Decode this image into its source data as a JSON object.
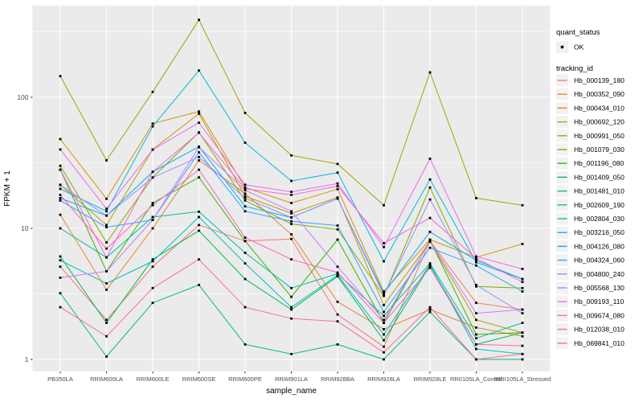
{
  "chart_data": {
    "type": "line",
    "title": "",
    "xlabel": "sample_name",
    "ylabel": "FPKM + 1",
    "y_scale": "log10",
    "y_tick_labels": [
      "1",
      "10",
      "100"
    ],
    "y_tick_values": [
      1,
      10,
      100
    ],
    "y_minor_values": [
      3.162,
      31.62,
      316.2
    ],
    "ylim": [
      0.88,
      520
    ],
    "grid": true,
    "legend_position": "right",
    "panel_bg": "#EBEBEB",
    "grid_color": "#FFFFFF",
    "key_bg": "#F2F2F2",
    "tick_text_color": "#4D4D4D",
    "point_color": "#000000",
    "categories": [
      "PB350LA",
      "RRIM600LA",
      "RRIM600LE",
      "RRIM600SE",
      "RRIM600PE",
      "RRIM901LA",
      "RRIM928BA",
      "RRIM928LA",
      "RRIM928LE",
      "RRII105LA_Control",
      "RRII105LA_Stressed"
    ],
    "series": [
      {
        "name": "Hb_000139_180",
        "color": "#F8766D",
        "values": [
          5.1,
          2.0,
          5.1,
          10.6,
          8.0,
          8.3,
          2.2,
          1.25,
          8.0,
          2.7,
          2.4
        ]
      },
      {
        "name": "Hb_000352_090",
        "color": "#EA8331",
        "values": [
          12.7,
          3.4,
          10.0,
          33.0,
          18.4,
          9.0,
          2.75,
          1.7,
          2.4,
          1.75,
          1.5
        ]
      },
      {
        "name": "Hb_000434_010",
        "color": "#D89000",
        "values": [
          48.0,
          16.8,
          63.0,
          78.0,
          20.5,
          15.6,
          19.9,
          3.3,
          8.2,
          6.0,
          7.6
        ]
      },
      {
        "name": "Hb_000692_120",
        "color": "#C09B00",
        "values": [
          21.5,
          10.6,
          40.0,
          75.0,
          17.6,
          13.0,
          17.2,
          2.6,
          7.9,
          2.0,
          1.6
        ]
      },
      {
        "name": "Hb_000991_050",
        "color": "#A3A500",
        "values": [
          145.0,
          33.0,
          110.0,
          390.0,
          76.0,
          36.0,
          31.0,
          15.0,
          155.0,
          17.0,
          15.0
        ]
      },
      {
        "name": "Hb_001079_030",
        "color": "#7CAE00",
        "values": [
          30.0,
          7.8,
          24.5,
          54.0,
          16.3,
          10.8,
          9.8,
          3.05,
          20.5,
          3.6,
          3.5
        ]
      },
      {
        "name": "Hb_001196_080",
        "color": "#39B600",
        "values": [
          28.0,
          4.7,
          15.6,
          24.5,
          8.0,
          3.0,
          8.2,
          1.9,
          8.1,
          1.55,
          1.6
        ]
      },
      {
        "name": "Hb_001409_050",
        "color": "#00BB4E",
        "values": [
          6.1,
          1.9,
          5.8,
          9.6,
          4.1,
          2.4,
          4.3,
          1.4,
          5.2,
          1.3,
          1.6
        ]
      },
      {
        "name": "Hb_001481_010",
        "color": "#00BF7D",
        "values": [
          3.2,
          1.05,
          2.7,
          3.7,
          1.3,
          1.1,
          1.3,
          1.0,
          2.3,
          1.0,
          1.0
        ]
      },
      {
        "name": "Hb_002609_190",
        "color": "#00C1A3",
        "values": [
          10.0,
          6.0,
          12.2,
          13.4,
          6.5,
          3.5,
          4.5,
          2.15,
          5.4,
          1.45,
          1.9
        ]
      },
      {
        "name": "Hb_002804_030",
        "color": "#00BFC4",
        "values": [
          5.7,
          3.8,
          5.6,
          12.2,
          5.4,
          2.5,
          4.4,
          1.55,
          5.3,
          1.2,
          1.1
        ]
      },
      {
        "name": "Hb_003216_050",
        "color": "#00BAE0",
        "values": [
          20.0,
          13.5,
          60.0,
          160.0,
          45.0,
          23.0,
          26.6,
          5.6,
          23.6,
          5.5,
          4.1
        ]
      },
      {
        "name": "Hb_004126_080",
        "color": "#00B0F6",
        "values": [
          17.0,
          12.5,
          27.0,
          42.0,
          14.7,
          12.1,
          16.9,
          3.2,
          9.4,
          5.7,
          4.1
        ]
      },
      {
        "name": "Hb_004324_060",
        "color": "#35A2FF",
        "values": [
          16.3,
          10.2,
          11.6,
          38.0,
          13.5,
          11.3,
          10.5,
          2.3,
          7.1,
          5.2,
          3.3
        ]
      },
      {
        "name": "Hb_004800_240",
        "color": "#9590FF",
        "values": [
          21.4,
          12.5,
          24.4,
          35.0,
          17.0,
          12.1,
          16.9,
          3.1,
          16.6,
          3.7,
          2.25
        ]
      },
      {
        "name": "Hb_005568_130",
        "color": "#C77CFF",
        "values": [
          4.2,
          4.7,
          11.6,
          41.6,
          19.5,
          13.5,
          5.1,
          2.0,
          8.0,
          2.25,
          2.4
        ]
      },
      {
        "name": "Hb_009193_110",
        "color": "#E76BF3",
        "values": [
          40.0,
          14.1,
          39.8,
          64.0,
          21.5,
          19.0,
          22.0,
          7.2,
          34.0,
          6.1,
          4.9
        ]
      },
      {
        "name": "Hb_009674_080",
        "color": "#FA62DB",
        "values": [
          28.0,
          6.0,
          27.0,
          53.6,
          20.0,
          18.0,
          21.0,
          7.7,
          12.0,
          5.9,
          3.9
        ]
      },
      {
        "name": "Hb_012038_010",
        "color": "#FF62BC",
        "values": [
          18.0,
          7.0,
          15.0,
          28.0,
          8.5,
          5.8,
          4.6,
          1.9,
          5.0,
          1.3,
          1.27
        ]
      },
      {
        "name": "Hb_069841_010",
        "color": "#FF6A98",
        "values": [
          2.5,
          1.5,
          3.5,
          5.8,
          2.5,
          2.05,
          1.95,
          1.13,
          2.5,
          1.0,
          1.1
        ]
      }
    ]
  },
  "legend": {
    "quant_title": "quant_status",
    "quant_items": [
      {
        "label": "OK",
        "symbol": "point"
      }
    ],
    "tracking_title": "tracking_id"
  }
}
